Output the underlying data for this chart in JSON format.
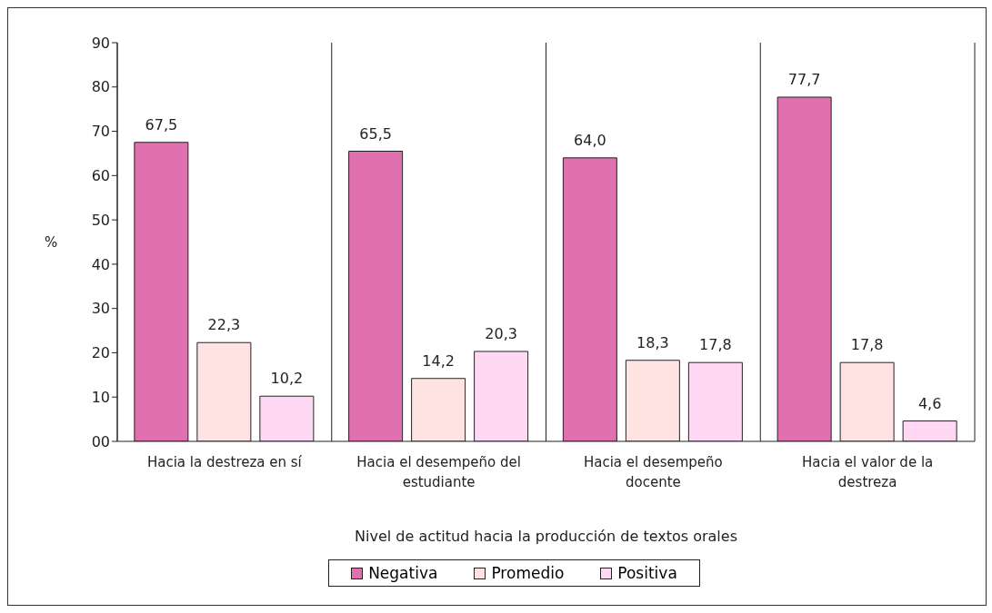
{
  "chart_data": {
    "type": "bar",
    "xlabel": "Nivel de actitud hacia la producción de textos orales",
    "ylabel": "%",
    "categories": [
      "Hacia la destreza en sí",
      "Hacia el desempeño del estudiante",
      "Hacia el desempeño docente",
      "Hacia el valor de la destreza"
    ],
    "series": [
      {
        "name": "Negativa",
        "color": "#e070b0",
        "values": [
          67.5,
          65.5,
          64.0,
          77.7
        ],
        "value_labels": [
          "67,5",
          "65,5",
          "64,0",
          "77,7"
        ]
      },
      {
        "name": "Promedio",
        "color": "#ffe2e2",
        "values": [
          22.3,
          14.2,
          18.3,
          17.8
        ],
        "value_labels": [
          "22,3",
          "14,2",
          "18,3",
          "17,8"
        ]
      },
      {
        "name": "Positiva",
        "color": "#ffd8f4",
        "values": [
          10.2,
          20.3,
          17.8,
          4.6
        ],
        "value_labels": [
          "10,2",
          "20,3",
          "17,8",
          "4,6"
        ]
      }
    ],
    "ylim": [
      0,
      90
    ],
    "yticks": [
      {
        "value": 0,
        "label": "00"
      },
      10,
      20,
      30,
      40,
      50,
      60,
      70,
      80,
      90
    ],
    "grid": "x",
    "legend": "bottom"
  }
}
